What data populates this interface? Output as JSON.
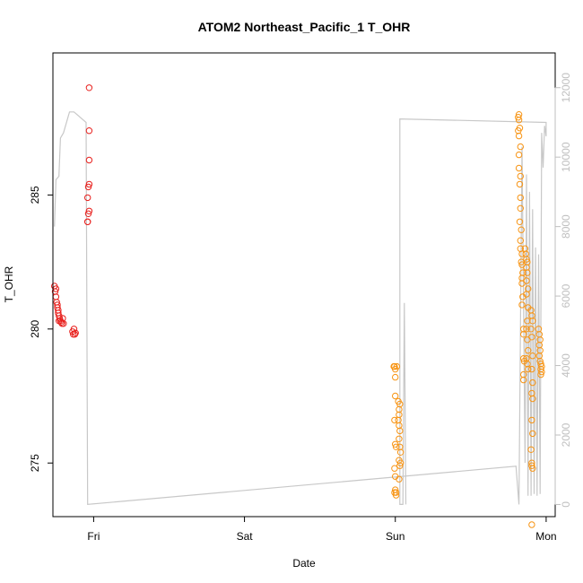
{
  "chart_data": {
    "type": "scatter",
    "title": "ATOM2 Northeast_Pacific_1 T_OHR",
    "xlabel": "Date",
    "ylabel": "T_OHR",
    "x_ticks": [
      "Fri",
      "Sat",
      "Sun",
      "Mon"
    ],
    "y_ticks": [
      "275",
      "280",
      "285"
    ],
    "y2_ticks": [
      "0",
      "2000",
      "4000",
      "6000",
      "8000",
      "10000",
      "12000"
    ],
    "xlim": [
      -0.27,
      3.06
    ],
    "ylim": [
      273.0,
      290.3
    ],
    "y2lim": [
      -350,
      13000
    ],
    "colors": {
      "axis": "#000000",
      "line": "#c8c8c8",
      "red": "#e8201d",
      "orange": "#f79414",
      "right_axis": "#bfbfbf"
    },
    "altitude_line": [
      [
        -0.26,
        8000
      ],
      [
        -0.25,
        9350
      ],
      [
        -0.23,
        9450
      ],
      [
        -0.22,
        10550
      ],
      [
        -0.2,
        10700
      ],
      [
        -0.16,
        11300
      ],
      [
        -0.13,
        11300
      ],
      [
        -0.05,
        11000
      ],
      [
        -0.04,
        0
      ],
      [
        2.8,
        1100
      ],
      [
        2.82,
        0
      ],
      [
        2.84,
        10300
      ],
      [
        2.86,
        1200
      ],
      [
        2.87,
        9500
      ],
      [
        2.88,
        250
      ],
      [
        2.89,
        9000
      ],
      [
        2.9,
        250
      ],
      [
        2.91,
        8500
      ],
      [
        2.92,
        300
      ],
      [
        2.93,
        7400
      ],
      [
        2.94,
        250
      ],
      [
        2.95,
        7200
      ],
      [
        2.96,
        300
      ],
      [
        2.97,
        10700
      ],
      [
        2.98,
        9700
      ],
      [
        2.99,
        10900
      ],
      [
        3.0,
        10600
      ],
      [
        3.0,
        11000
      ],
      [
        2.03,
        11100
      ],
      [
        2.03,
        0
      ],
      [
        2.05,
        0
      ],
      [
        2.06,
        5800
      ],
      [
        2.07,
        0
      ]
    ],
    "series": [
      {
        "name": "",
        "color": "red",
        "points": [
          [
            -0.26,
            281.6
          ],
          [
            -0.255,
            281.4
          ],
          [
            -0.25,
            281.2
          ],
          [
            -0.245,
            281.0
          ],
          [
            -0.24,
            280.8
          ],
          [
            -0.235,
            280.6
          ],
          [
            -0.23,
            280.5
          ],
          [
            -0.225,
            280.4
          ],
          [
            -0.22,
            280.3
          ],
          [
            -0.215,
            280.25
          ],
          [
            -0.21,
            280.2
          ],
          [
            -0.205,
            280.4
          ],
          [
            -0.2,
            280.2
          ],
          [
            -0.25,
            281.5
          ],
          [
            -0.24,
            280.9
          ],
          [
            -0.235,
            280.7
          ],
          [
            -0.23,
            280.3
          ],
          [
            -0.14,
            279.9
          ],
          [
            -0.135,
            279.8
          ],
          [
            -0.13,
            280.0
          ],
          [
            -0.125,
            279.8
          ],
          [
            -0.12,
            279.85
          ],
          [
            -0.04,
            284.0
          ],
          [
            -0.035,
            284.3
          ],
          [
            -0.03,
            284.4
          ],
          [
            -0.04,
            284.9
          ],
          [
            -0.035,
            285.3
          ],
          [
            -0.03,
            285.4
          ],
          [
            -0.03,
            286.3
          ],
          [
            -0.03,
            287.4
          ],
          [
            -0.03,
            289.0
          ],
          [
            -0.04,
            284.0
          ]
        ]
      },
      {
        "name": "",
        "color": "orange",
        "points": [
          [
            1.99,
            278.6
          ],
          [
            2.0,
            278.5
          ],
          [
            1.995,
            278.6
          ],
          [
            2.01,
            278.6
          ],
          [
            2.0,
            278.2
          ],
          [
            2.0,
            277.5
          ],
          [
            1.995,
            276.6
          ],
          [
            2.0,
            275.7
          ],
          [
            2.005,
            275.6
          ],
          [
            1.995,
            274.8
          ],
          [
            2.0,
            274.5
          ],
          [
            1.995,
            273.9
          ],
          [
            2.005,
            273.8
          ],
          [
            2.0,
            274.0
          ],
          [
            2.005,
            273.9
          ],
          [
            2.02,
            277.3
          ],
          [
            2.03,
            277.2
          ],
          [
            2.025,
            277.0
          ],
          [
            2.025,
            276.8
          ],
          [
            2.02,
            276.6
          ],
          [
            2.025,
            276.4
          ],
          [
            2.03,
            276.2
          ],
          [
            2.025,
            275.9
          ],
          [
            2.03,
            275.6
          ],
          [
            2.035,
            275.4
          ],
          [
            2.025,
            275.1
          ],
          [
            2.03,
            274.9
          ],
          [
            2.025,
            274.4
          ],
          [
            2.035,
            275.0
          ],
          [
            2.82,
            288.0
          ],
          [
            2.815,
            287.9
          ],
          [
            2.82,
            287.8
          ],
          [
            2.825,
            287.5
          ],
          [
            2.815,
            287.4
          ],
          [
            2.82,
            287.2
          ],
          [
            2.83,
            286.8
          ],
          [
            2.82,
            286.5
          ],
          [
            2.82,
            286.0
          ],
          [
            2.83,
            285.7
          ],
          [
            2.825,
            285.4
          ],
          [
            2.83,
            284.9
          ],
          [
            2.83,
            284.5
          ],
          [
            2.825,
            284.0
          ],
          [
            2.835,
            283.7
          ],
          [
            2.83,
            283.3
          ],
          [
            2.83,
            283.0
          ],
          [
            2.84,
            282.8
          ],
          [
            2.835,
            282.5
          ],
          [
            2.84,
            282.4
          ],
          [
            2.845,
            282.1
          ],
          [
            2.84,
            281.9
          ],
          [
            2.84,
            281.7
          ],
          [
            2.845,
            281.2
          ],
          [
            2.84,
            280.9
          ],
          [
            2.85,
            280.0
          ],
          [
            2.85,
            279.8
          ],
          [
            2.85,
            278.9
          ],
          [
            2.855,
            278.8
          ],
          [
            2.85,
            278.3
          ],
          [
            2.85,
            278.1
          ],
          [
            2.86,
            283.0
          ],
          [
            2.865,
            282.8
          ],
          [
            2.87,
            282.6
          ],
          [
            2.875,
            282.5
          ],
          [
            2.87,
            282.3
          ],
          [
            2.875,
            282.1
          ],
          [
            2.87,
            281.8
          ],
          [
            2.88,
            281.5
          ],
          [
            2.87,
            281.3
          ],
          [
            2.88,
            280.8
          ],
          [
            2.875,
            280.3
          ],
          [
            2.87,
            280.0
          ],
          [
            2.875,
            279.6
          ],
          [
            2.88,
            279.2
          ],
          [
            2.87,
            278.9
          ],
          [
            2.875,
            278.7
          ],
          [
            2.88,
            278.5
          ],
          [
            2.9,
            280.7
          ],
          [
            2.905,
            280.5
          ],
          [
            2.91,
            280.3
          ],
          [
            2.9,
            280.0
          ],
          [
            2.905,
            279.7
          ],
          [
            2.91,
            279.0
          ],
          [
            2.905,
            278.5
          ],
          [
            2.91,
            278.0
          ],
          [
            2.905,
            277.6
          ],
          [
            2.91,
            277.4
          ],
          [
            2.905,
            276.6
          ],
          [
            2.91,
            276.1
          ],
          [
            2.9,
            275.5
          ],
          [
            2.905,
            275.0
          ],
          [
            2.91,
            274.8
          ],
          [
            2.905,
            274.9
          ],
          [
            2.905,
            272.7
          ],
          [
            2.95,
            280.0
          ],
          [
            2.955,
            279.8
          ],
          [
            2.96,
            279.6
          ],
          [
            2.955,
            279.4
          ],
          [
            2.96,
            279.2
          ],
          [
            2.955,
            279.0
          ],
          [
            2.96,
            278.8
          ],
          [
            2.965,
            278.7
          ],
          [
            2.97,
            278.6
          ],
          [
            2.965,
            278.5
          ],
          [
            2.97,
            278.4
          ],
          [
            2.965,
            278.3
          ]
        ]
      }
    ]
  }
}
